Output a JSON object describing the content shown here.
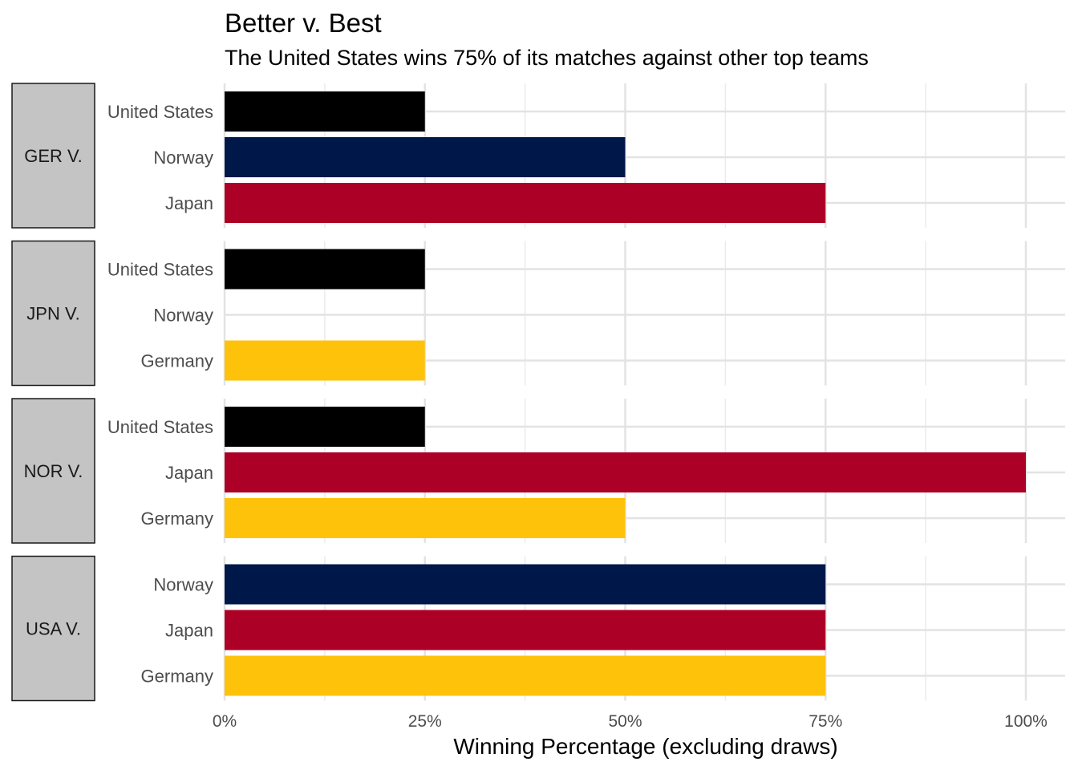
{
  "chart_data": {
    "type": "bar",
    "orientation": "horizontal",
    "title": "Better v. Best",
    "subtitle": "The United States wins 75% of its matches against other top teams",
    "xlabel": "Winning Percentage (excluding draws)",
    "ylabel": "",
    "xlim": [
      0,
      100
    ],
    "x_ticks": [
      "0%",
      "25%",
      "50%",
      "75%",
      "100%"
    ],
    "x_tick_values": [
      0,
      25,
      50,
      75,
      100
    ],
    "grid": true,
    "colors": {
      "United States": "#000000",
      "Norway": "#00174A",
      "Japan": "#AD0026",
      "Germany": "#FFC20A"
    },
    "facets": [
      {
        "label": "GER V.",
        "bars": [
          {
            "team": "United States",
            "value": 25
          },
          {
            "team": "Norway",
            "value": 50
          },
          {
            "team": "Japan",
            "value": 75
          }
        ]
      },
      {
        "label": "JPN V.",
        "bars": [
          {
            "team": "United States",
            "value": 25
          },
          {
            "team": "Norway",
            "value": 0
          },
          {
            "team": "Germany",
            "value": 25
          }
        ]
      },
      {
        "label": "NOR V.",
        "bars": [
          {
            "team": "United States",
            "value": 25
          },
          {
            "team": "Japan",
            "value": 100
          },
          {
            "team": "Germany",
            "value": 50
          }
        ]
      },
      {
        "label": "USA V.",
        "bars": [
          {
            "team": "Norway",
            "value": 75
          },
          {
            "team": "Japan",
            "value": 75
          },
          {
            "team": "Germany",
            "value": 75
          }
        ]
      }
    ]
  }
}
